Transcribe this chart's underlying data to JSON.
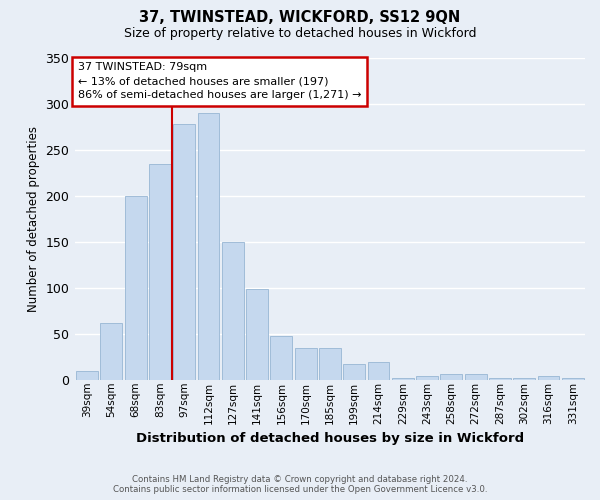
{
  "title": "37, TWINSTEAD, WICKFORD, SS12 9QN",
  "subtitle": "Size of property relative to detached houses in Wickford",
  "xlabel": "Distribution of detached houses by size in Wickford",
  "ylabel": "Number of detached properties",
  "categories": [
    "39sqm",
    "54sqm",
    "68sqm",
    "83sqm",
    "97sqm",
    "112sqm",
    "127sqm",
    "141sqm",
    "156sqm",
    "170sqm",
    "185sqm",
    "199sqm",
    "214sqm",
    "229sqm",
    "243sqm",
    "258sqm",
    "272sqm",
    "287sqm",
    "302sqm",
    "316sqm",
    "331sqm"
  ],
  "values": [
    10,
    62,
    200,
    235,
    278,
    290,
    150,
    99,
    48,
    35,
    35,
    18,
    20,
    2,
    5,
    7,
    7,
    2,
    2,
    5,
    2
  ],
  "bar_color": "#c5d8ee",
  "bar_edgecolor": "#a0bcd8",
  "background_color": "#e8eef6",
  "grid_color": "#ffffff",
  "property_line_x": 3.48,
  "annotation_line1": "37 TWINSTEAD: 79sqm",
  "annotation_line2": "← 13% of detached houses are smaller (197)",
  "annotation_line3": "86% of semi-detached houses are larger (1,271) →",
  "annotation_box_facecolor": "#ffffff",
  "annotation_box_edgecolor": "#cc0000",
  "property_line_color": "#cc0000",
  "ylim": [
    0,
    350
  ],
  "yticks": [
    0,
    50,
    100,
    150,
    200,
    250,
    300,
    350
  ],
  "footer_line1": "Contains HM Land Registry data © Crown copyright and database right 2024.",
  "footer_line2": "Contains public sector information licensed under the Open Government Licence v3.0."
}
